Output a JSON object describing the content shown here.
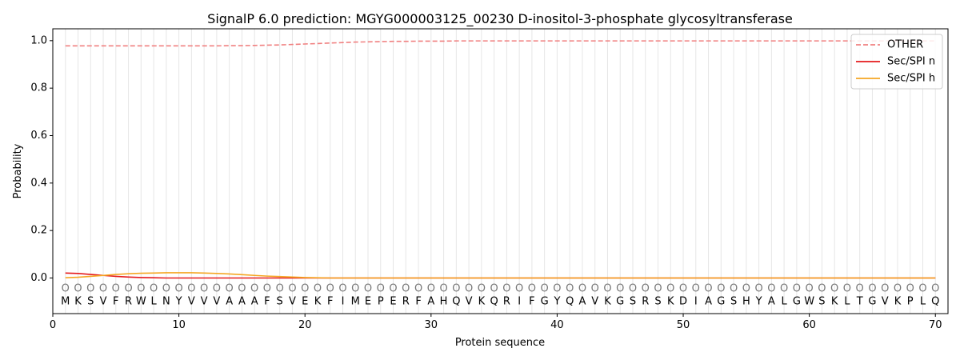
{
  "chart_data": {
    "type": "line",
    "title": "SignalP 6.0 prediction: MGYG000003125_00230 D-inositol-3-phosphate glycosyltransferase",
    "xlabel": "Protein sequence",
    "ylabel": "Probability",
    "xlim": [
      0,
      71
    ],
    "ylim": [
      -0.15,
      1.05
    ],
    "xticks": [
      0,
      10,
      20,
      30,
      40,
      50,
      60,
      70
    ],
    "yticks": [
      0.0,
      0.2,
      0.4,
      0.6,
      0.8,
      1.0
    ],
    "ytick_labels": [
      "0.0",
      "0.2",
      "0.4",
      "0.6",
      "0.8",
      "1.0"
    ],
    "legend_position": "top-right",
    "sequence": [
      "M",
      "K",
      "S",
      "V",
      "F",
      "R",
      "W",
      "L",
      "N",
      "Y",
      "V",
      "V",
      "V",
      "A",
      "A",
      "A",
      "F",
      "S",
      "V",
      "E",
      "K",
      "F",
      "I",
      "M",
      "E",
      "P",
      "E",
      "R",
      "F",
      "A",
      "H",
      "Q",
      "V",
      "K",
      "Q",
      "R",
      "I",
      "F",
      "G",
      "Y",
      "Q",
      "A",
      "V",
      "K",
      "G",
      "S",
      "R",
      "S",
      "K",
      "D",
      "I",
      "A",
      "G",
      "S",
      "H",
      "Y",
      "A",
      "L",
      "G",
      "W",
      "S",
      "K",
      "L",
      "T",
      "G",
      "V",
      "K",
      "P",
      "L",
      "Q"
    ],
    "predicted_labels": [
      "O",
      "O",
      "O",
      "O",
      "O",
      "O",
      "O",
      "O",
      "O",
      "O",
      "O",
      "O",
      "O",
      "O",
      "O",
      "O",
      "O",
      "O",
      "O",
      "O",
      "O",
      "O",
      "O",
      "O",
      "O",
      "O",
      "O",
      "O",
      "O",
      "O",
      "O",
      "O",
      "O",
      "O",
      "O",
      "O",
      "O",
      "O",
      "O",
      "O",
      "O",
      "O",
      "O",
      "O",
      "O",
      "O",
      "O",
      "O",
      "O",
      "O",
      "O",
      "O",
      "O",
      "O",
      "O",
      "O",
      "O",
      "O",
      "O",
      "O",
      "O",
      "O",
      "O",
      "O",
      "O",
      "O",
      "O",
      "O",
      "O",
      "O"
    ],
    "series": [
      {
        "name": "OTHER",
        "color": "#f08080",
        "dash": true,
        "values": [
          0.978,
          0.978,
          0.978,
          0.978,
          0.978,
          0.978,
          0.978,
          0.978,
          0.978,
          0.978,
          0.978,
          0.978,
          0.978,
          0.979,
          0.979,
          0.98,
          0.981,
          0.982,
          0.984,
          0.986,
          0.988,
          0.99,
          0.992,
          0.994,
          0.995,
          0.996,
          0.997,
          0.997,
          0.998,
          0.998,
          0.998,
          0.999,
          0.999,
          0.999,
          0.999,
          0.999,
          0.999,
          0.999,
          0.999,
          0.999,
          0.999,
          0.999,
          0.999,
          0.999,
          0.999,
          0.999,
          0.999,
          0.999,
          0.999,
          0.999,
          0.999,
          0.999,
          0.999,
          0.999,
          0.999,
          0.999,
          0.999,
          0.999,
          0.999,
          0.999,
          0.999,
          0.999,
          0.999,
          0.999,
          0.999,
          0.999,
          0.999,
          0.999,
          0.999,
          0.999
        ]
      },
      {
        "name": "Sec/SPI n",
        "color": "#e41a1c",
        "dash": false,
        "values": [
          0.021,
          0.019,
          0.015,
          0.011,
          0.007,
          0.004,
          0.002,
          0.001,
          0.0,
          0.0,
          0.0,
          0.0,
          0.0,
          0.0,
          0.0,
          0.0,
          0.0,
          0.0,
          0.0,
          0.0,
          0.0,
          0.0,
          0.0,
          0.0,
          0.0,
          0.0,
          0.0,
          0.0,
          0.0,
          0.0,
          0.0,
          0.0,
          0.0,
          0.0,
          0.0,
          0.0,
          0.0,
          0.0,
          0.0,
          0.0,
          0.0,
          0.0,
          0.0,
          0.0,
          0.0,
          0.0,
          0.0,
          0.0,
          0.0,
          0.0,
          0.0,
          0.0,
          0.0,
          0.0,
          0.0,
          0.0,
          0.0,
          0.0,
          0.0,
          0.0,
          0.0,
          0.0,
          0.0,
          0.0,
          0.0,
          0.0,
          0.0,
          0.0,
          0.0,
          0.0
        ]
      },
      {
        "name": "Sec/SPI h",
        "color": "#f5a623",
        "dash": false,
        "values": [
          0.001,
          0.003,
          0.007,
          0.011,
          0.015,
          0.018,
          0.02,
          0.021,
          0.022,
          0.022,
          0.022,
          0.021,
          0.019,
          0.017,
          0.014,
          0.011,
          0.008,
          0.006,
          0.004,
          0.002,
          0.001,
          0.0,
          0.0,
          0.0,
          0.0,
          0.0,
          0.0,
          0.0,
          0.0,
          0.0,
          0.0,
          0.0,
          0.0,
          0.0,
          0.0,
          0.0,
          0.0,
          0.0,
          0.0,
          0.0,
          0.0,
          0.0,
          0.0,
          0.0,
          0.0,
          0.0,
          0.0,
          0.0,
          0.0,
          0.0,
          0.0,
          0.0,
          0.0,
          0.0,
          0.0,
          0.0,
          0.0,
          0.0,
          0.0,
          0.0,
          0.0,
          0.0,
          0.0,
          0.0,
          0.0,
          0.0,
          0.0,
          0.0,
          0.0,
          0.0
        ]
      }
    ]
  }
}
